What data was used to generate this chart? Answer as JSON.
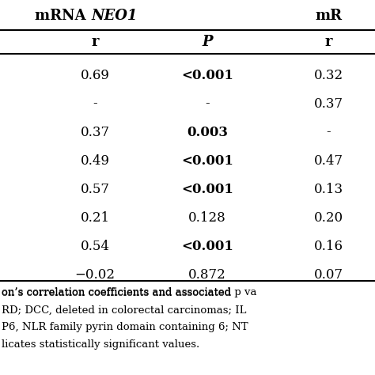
{
  "header1_normal": "mRNA ",
  "header1_italic": "NEO1",
  "header2": "mR",
  "subheaders_r1": "r",
  "subheaders_P": "P",
  "subheaders_r2": "r",
  "rows": [
    [
      "0.69",
      "<0.001",
      "0.32"
    ],
    [
      "-",
      "-",
      "0.37"
    ],
    [
      "0.37",
      "0.003",
      "-"
    ],
    [
      "0.49",
      "<0.001",
      "0.47"
    ],
    [
      "0.57",
      "<0.001",
      "0.13"
    ],
    [
      "0.21",
      "0.128",
      "0.20"
    ],
    [
      "0.54",
      "<0.001",
      "0.16"
    ],
    [
      "−0.02",
      "0.872",
      "0.07"
    ]
  ],
  "bold_p_indices": [
    0,
    2,
    3,
    4,
    6
  ],
  "footnote_lines": [
    [
      "on’s correlation coefficients and associated ",
      "p",
      " va"
    ],
    [
      "RD; ",
      "DCC",
      ", deleted in colorectal carcinomas; ",
      "IL"
    ],
    [
      "P6",
      ", NLR family pyrin domain containing 6; ",
      "NT"
    ],
    [
      "licates statistically significant values."
    ]
  ],
  "background_color": "#ffffff",
  "text_color": "#000000",
  "line_color": "#000000"
}
